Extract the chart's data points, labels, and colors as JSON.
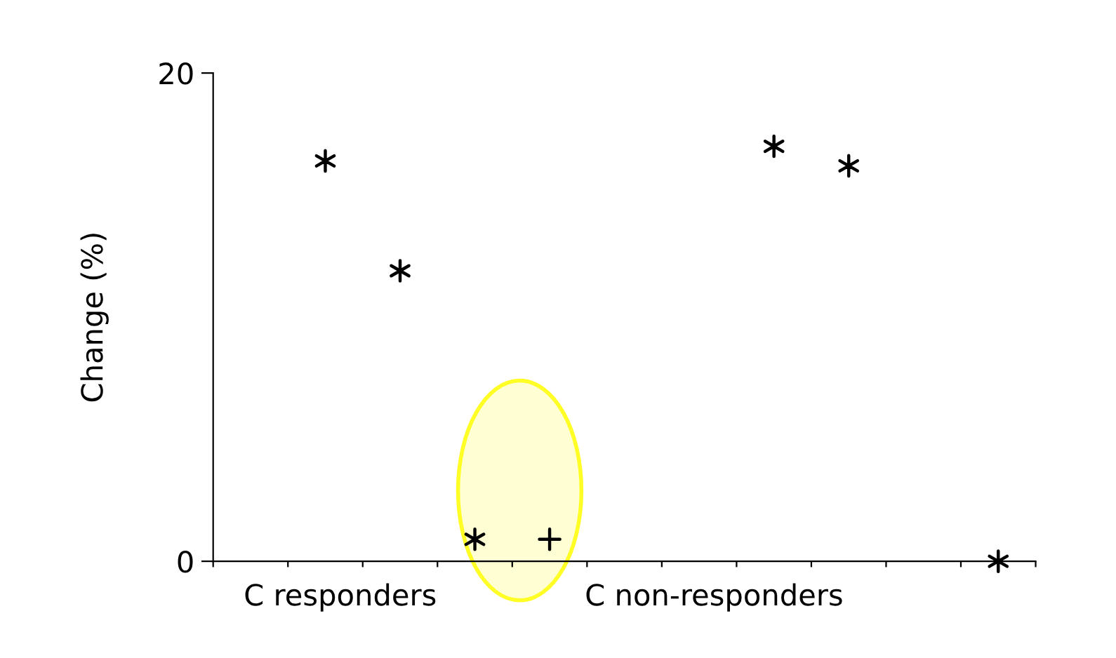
{
  "chart_data": {
    "type": "scatter",
    "ylabel": "Change (%)",
    "categories": [
      null,
      null,
      null,
      null,
      null,
      null,
      null,
      null,
      null,
      null,
      null
    ],
    "series": [
      {
        "marker": "cross",
        "color": "#000000",
        "values": [
          null,
          16.4,
          11.9,
          0.9,
          null,
          null,
          null,
          17.0,
          16.2,
          null,
          0.0
        ]
      },
      {
        "marker": "cross",
        "color": "#000000",
        "values": [
          null,
          null,
          null,
          null,
          0.9,
          null,
          null,
          null,
          null,
          null,
          null
        ]
      }
    ],
    "ylim": [
      0,
      20
    ],
    "yticks": [
      0,
      20
    ],
    "annotations": [
      "C responders",
      "C non-responders"
    ],
    "grid": false,
    "legend": false
  }
}
